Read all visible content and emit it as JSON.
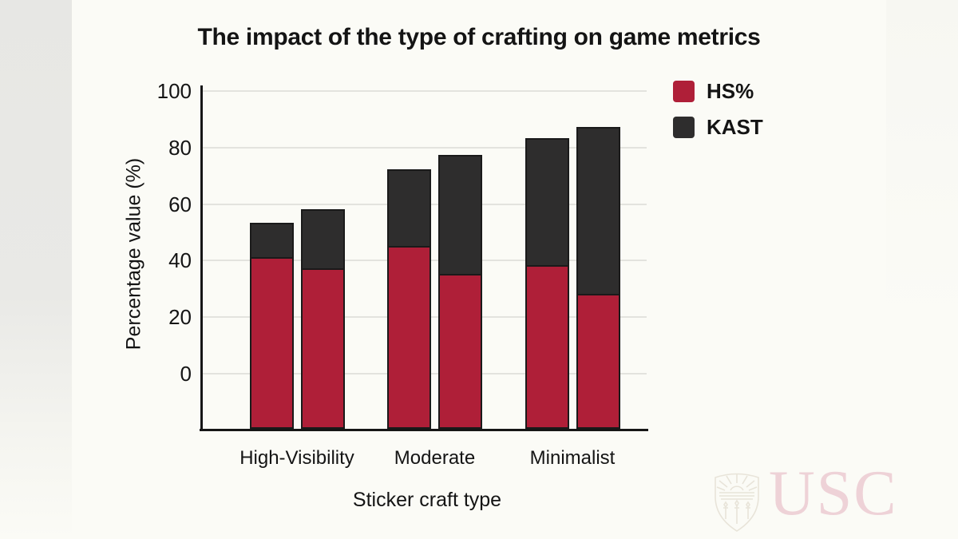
{
  "title": "The impact of the type of crafting on game metrics",
  "colors": {
    "background": "#fbfbf6",
    "hs_red": "#af1f38",
    "kast_dark": "#2e2d2d",
    "axis": "#161616",
    "grid": "#e3e3de",
    "watermark_pink": "#eed2d7",
    "watermark_shield": "#e8e4d9"
  },
  "watermark": {
    "text": "USC",
    "logo": "usc-shield"
  },
  "chart_data": {
    "type": "bar",
    "stacked": true,
    "title": "The impact of the type of crafting on game metrics",
    "xlabel": "Sticker craft type",
    "ylabel": "Percentage value (%)",
    "ylim": [
      0,
      100
    ],
    "yticks": [
      0,
      20,
      40,
      60,
      80,
      100
    ],
    "grid": "horizontal",
    "legend_position": "top-right",
    "bars_per_category": 2,
    "categories": [
      "High-Visibility",
      "Moderate",
      "Minimalist"
    ],
    "series": [
      {
        "name": "HS%",
        "color": "#af1f38",
        "role": "lower segment (bottom of stack)",
        "values": [
          [
            41,
            37
          ],
          [
            45,
            35
          ],
          [
            38,
            28
          ]
        ]
      },
      {
        "name": "KAST",
        "color": "#2e2d2d",
        "role": "upper segment (stack top value)",
        "values": [
          [
            53,
            58
          ],
          [
            72,
            77
          ],
          [
            83,
            87
          ]
        ]
      }
    ]
  }
}
